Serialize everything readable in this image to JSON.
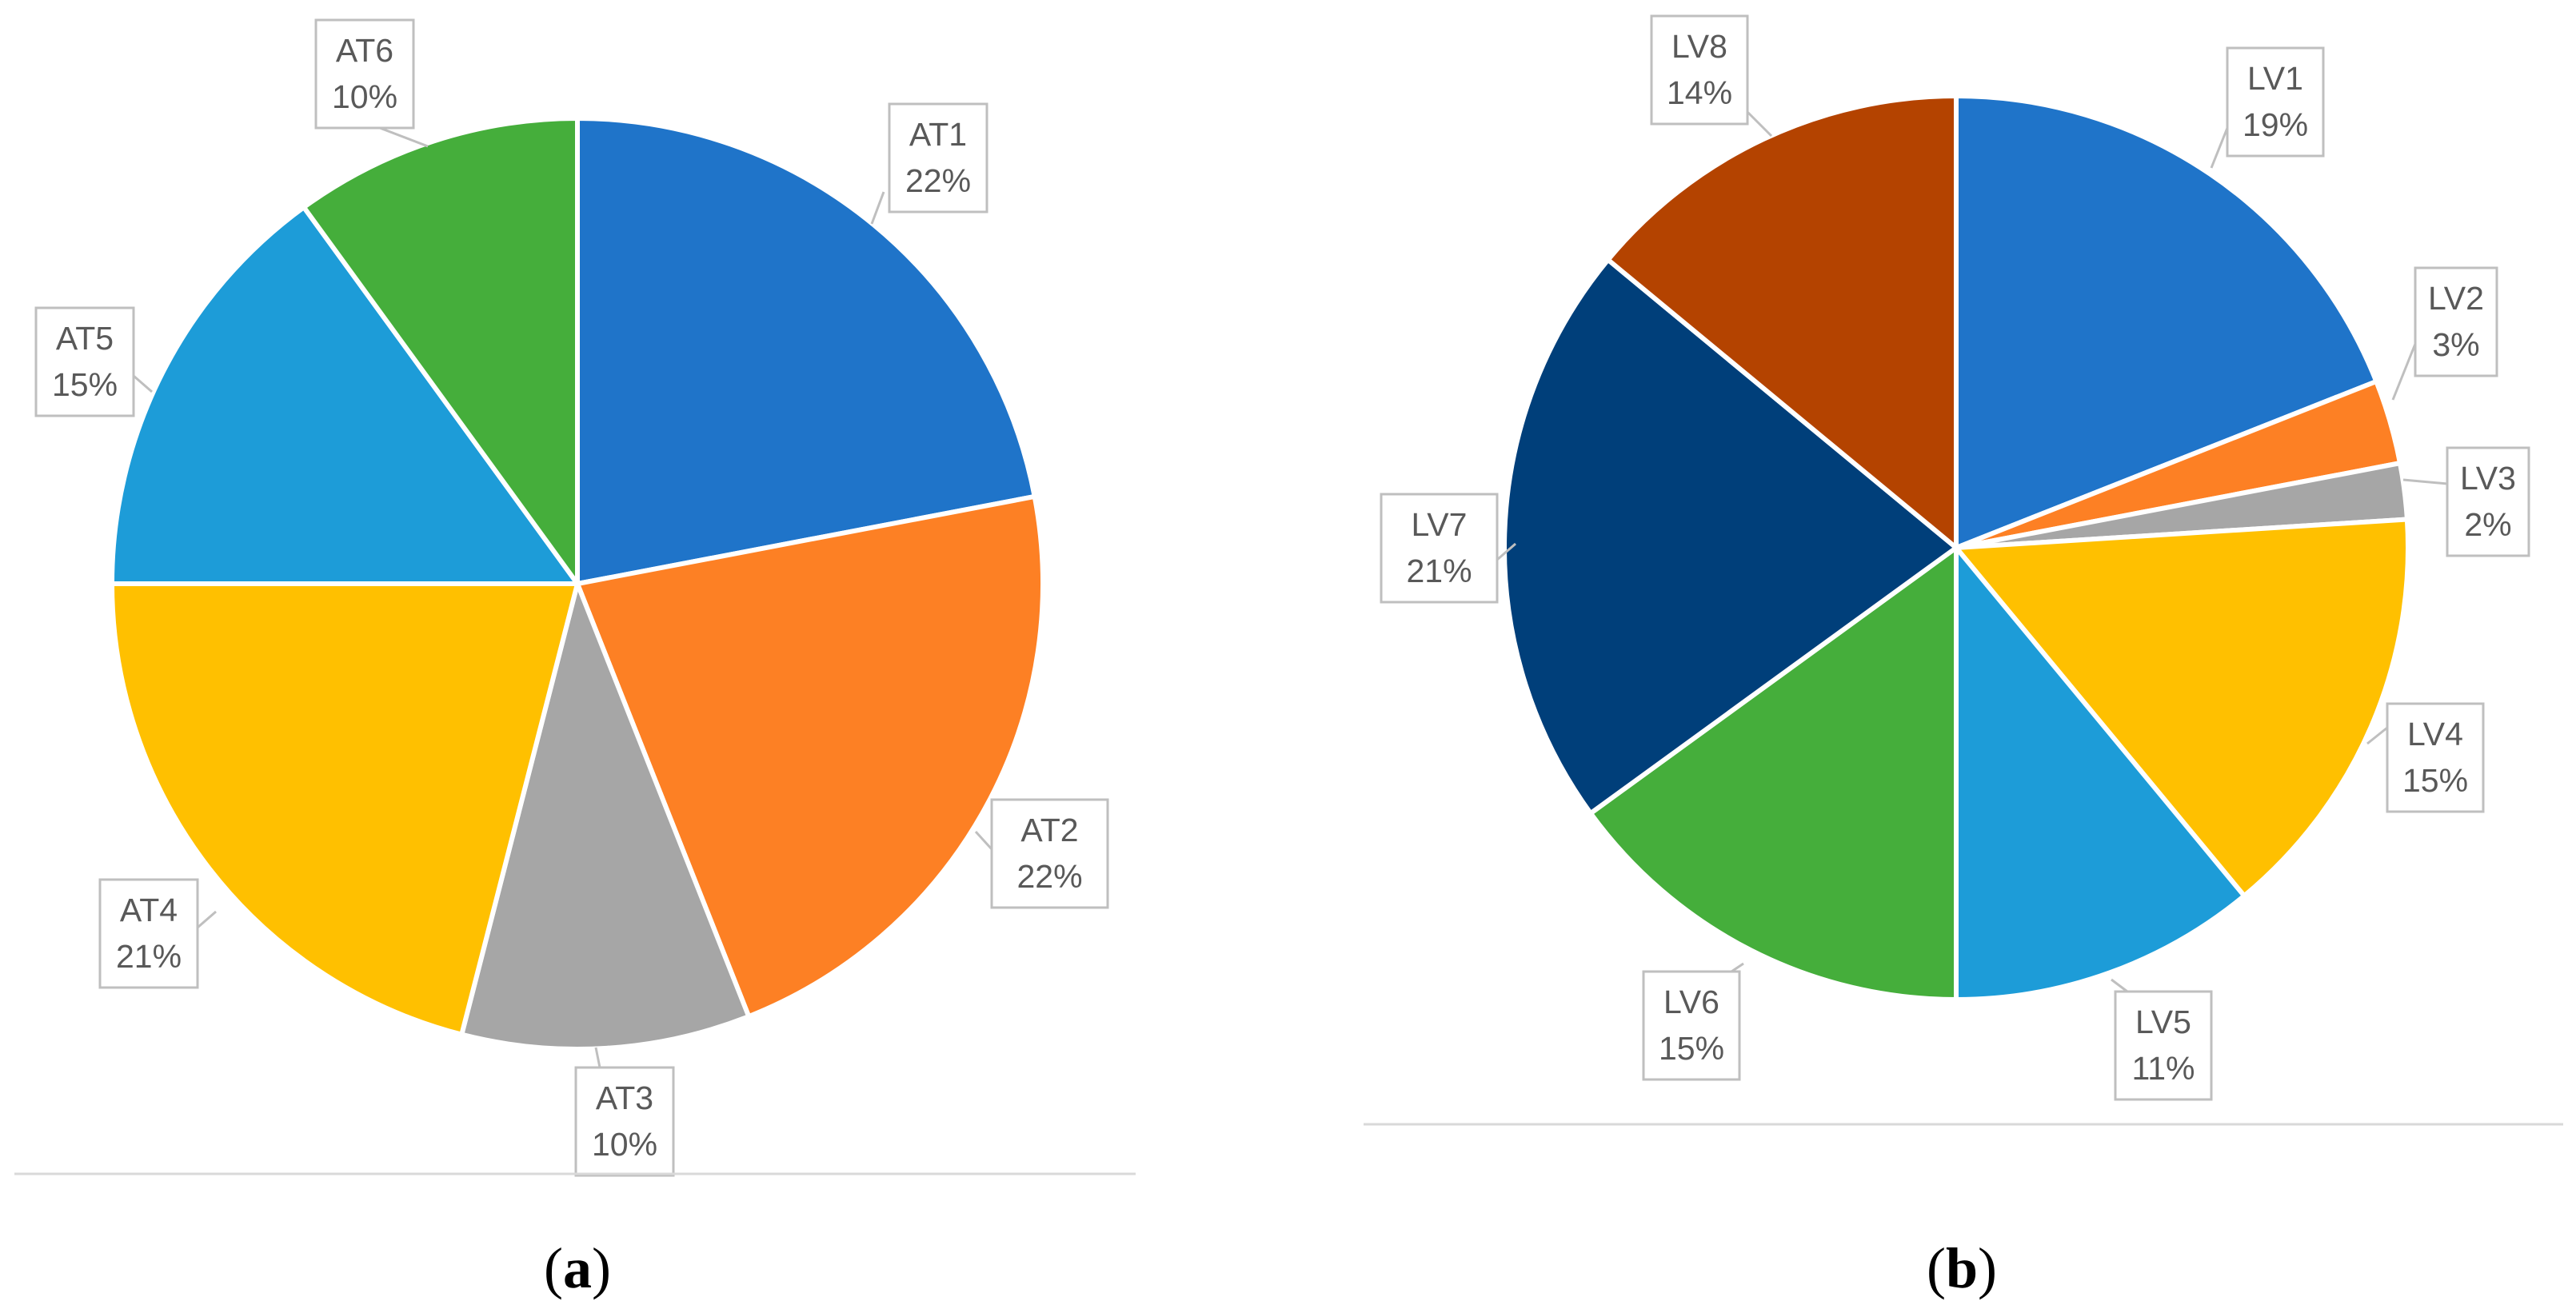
{
  "chart_data": [
    {
      "type": "pie",
      "caption": "(a)",
      "categories": [
        "AT1",
        "AT2",
        "AT3",
        "AT4",
        "AT5",
        "AT6"
      ],
      "values": [
        22,
        22,
        10,
        21,
        15,
        10
      ],
      "value_labels": [
        "22%",
        "22%",
        "10%",
        "21%",
        "15%",
        "10%"
      ],
      "colors": [
        "#1f74c9",
        "#fd8024",
        "#a6a6a6",
        "#ffc000",
        "#1d9cd8",
        "#45ae3b"
      ]
    },
    {
      "type": "pie",
      "caption": "(b)",
      "categories": [
        "LV1",
        "LV2",
        "LV3",
        "LV4",
        "LV5",
        "LV6",
        "LV7",
        "LV8"
      ],
      "values": [
        19,
        3,
        2,
        15,
        11,
        15,
        21,
        14
      ],
      "value_labels": [
        "19%",
        "3%",
        "2%",
        "15%",
        "11%",
        "15%",
        "21%",
        "14%"
      ],
      "colors": [
        "#1f74c9",
        "#fd8024",
        "#a6a6a6",
        "#ffc000",
        "#1d9cd8",
        "#45ae3b",
        "#003f7a",
        "#b44300"
      ]
    }
  ]
}
